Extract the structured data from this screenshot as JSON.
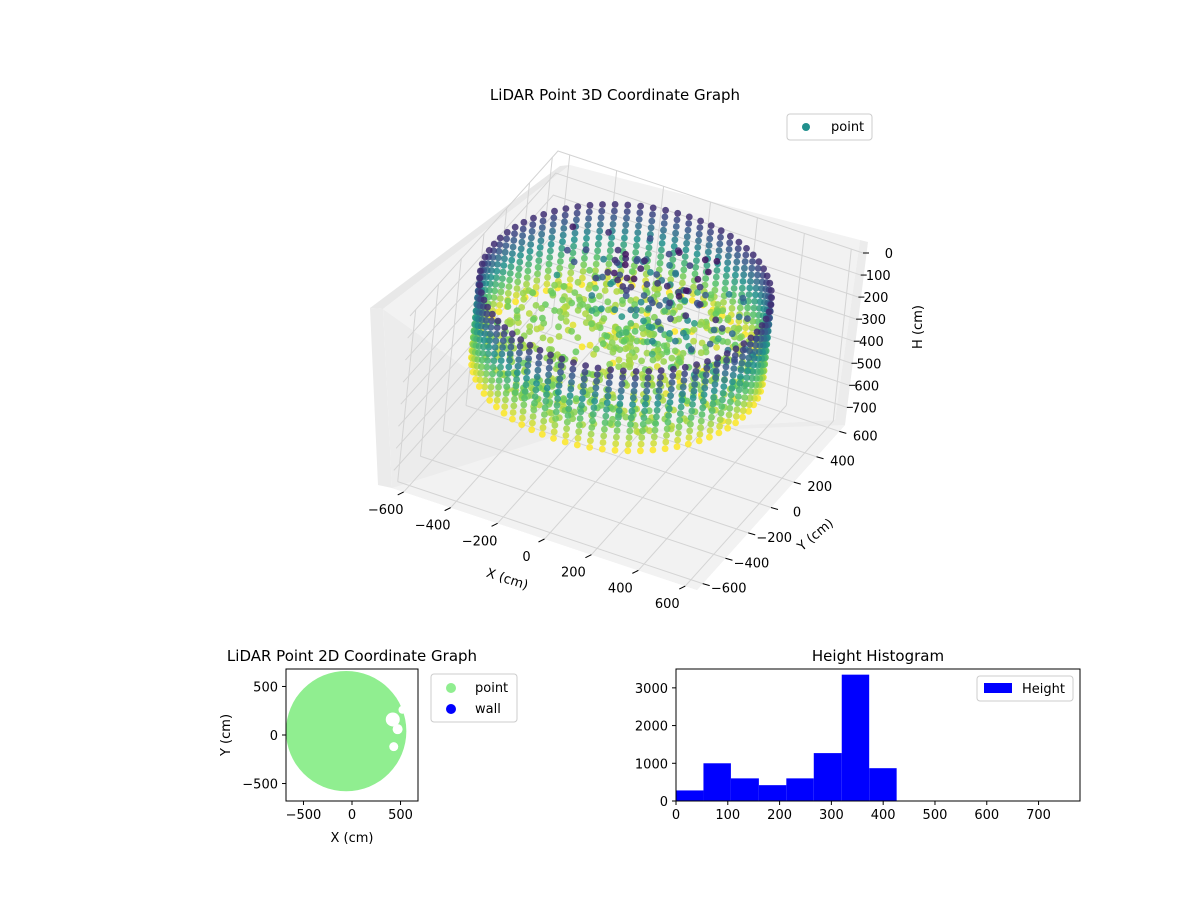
{
  "chart_data": [
    {
      "type": "scatter",
      "title": "LiDAR Point 3D Coordinate Graph",
      "xlabel": "X (cm)",
      "ylabel": "Y (cm)",
      "zlabel": "H (cm)",
      "legend": {
        "placement": "top-right",
        "entries": [
          {
            "label": "point",
            "color": "#21908d"
          }
        ]
      },
      "x_ticks": [
        -600,
        -400,
        -200,
        0,
        200,
        400,
        600
      ],
      "y_ticks": [
        -600,
        -400,
        -200,
        0,
        200,
        400,
        600
      ],
      "z_ticks": [
        0,
        100,
        200,
        300,
        400,
        500,
        600,
        700
      ],
      "xlim": [
        -650,
        650
      ],
      "ylim": [
        -650,
        650
      ],
      "zlim": [
        0,
        780
      ],
      "z_inverted": true,
      "grid": true,
      "colormap": "viridis"
    },
    {
      "type": "scatter",
      "title": "LiDAR Point 2D Coordinate Graph",
      "xlabel": "X (cm)",
      "ylabel": "Y (cm)",
      "x_ticks": [
        -500,
        0,
        500
      ],
      "y_ticks": [
        -500,
        0,
        500
      ],
      "xlim": [
        -680,
        680
      ],
      "ylim": [
        -680,
        680
      ],
      "legend": {
        "placement": "outside-right",
        "entries": [
          {
            "label": "point",
            "color": "#90ee90"
          },
          {
            "label": "wall",
            "color": "#0000ff"
          }
        ]
      }
    },
    {
      "type": "bar",
      "title": "Height Histogram",
      "legend": {
        "placement": "top-right",
        "entries": [
          {
            "label": "Height",
            "color": "#0000ff"
          }
        ]
      },
      "bin_edges": [
        0,
        53,
        106,
        160,
        213,
        266,
        320,
        373,
        426
      ],
      "values": [
        280,
        1000,
        600,
        420,
        600,
        1270,
        3350,
        870
      ],
      "xlim": [
        0,
        780
      ],
      "ylim": [
        0,
        3500
      ],
      "x_ticks": [
        0,
        100,
        200,
        300,
        400,
        500,
        600,
        700
      ],
      "y_ticks": [
        0,
        1000,
        2000,
        3000
      ]
    }
  ]
}
